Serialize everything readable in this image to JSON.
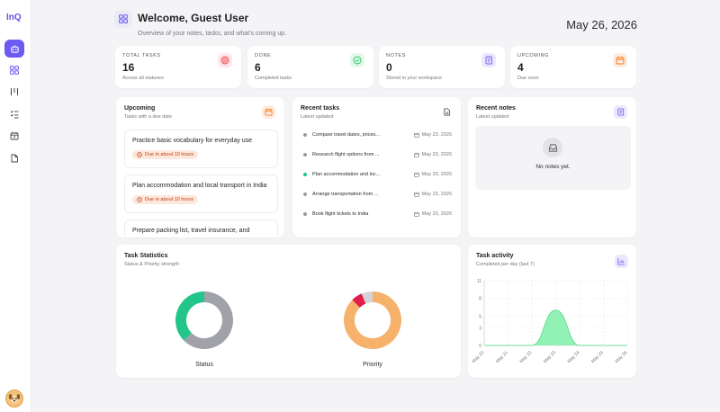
{
  "app": {
    "logo": "InQ"
  },
  "sidebar": {
    "items": [
      {
        "icon": "bot-icon",
        "active": true
      },
      {
        "icon": "grid-icon",
        "active": false
      },
      {
        "icon": "columns-icon",
        "active": false
      },
      {
        "icon": "checklist-icon",
        "active": false
      },
      {
        "icon": "calendar-icon",
        "active": false
      },
      {
        "icon": "file-icon",
        "active": false
      }
    ]
  },
  "header": {
    "title": "Welcome, Guest User",
    "subtitle": "Overview of your notes, tasks, and what's coming up.",
    "date": "May 26, 2026"
  },
  "stats": [
    {
      "label": "TOTAL TASKS",
      "value": "16",
      "sub": "Across all statuses",
      "icon": "target-icon",
      "color": "#ef4444"
    },
    {
      "label": "DONE",
      "value": "6",
      "sub": "Completed tasks",
      "icon": "check-circle-icon",
      "color": "#22c55e"
    },
    {
      "label": "NOTES",
      "value": "0",
      "sub": "Stored in your workspace",
      "icon": "notebook-icon",
      "color": "#6d5bf0"
    },
    {
      "label": "UPCOMING",
      "value": "4",
      "sub": "Due soon",
      "icon": "calendar-icon",
      "color": "#f97316"
    }
  ],
  "upcoming": {
    "title": "Upcoming",
    "subtitle": "Tasks with a due date",
    "items": [
      {
        "text": "Practice basic vocabulary for everyday use",
        "due": "Due in about 10 hours"
      },
      {
        "text": "Plan accommodation and local transport in India",
        "due": "Due in about 10 hours"
      },
      {
        "text": "Prepare packing list, travel insurance, and important documents",
        "due": ""
      }
    ]
  },
  "recent_tasks": {
    "title": "Recent tasks",
    "subtitle": "Latest updated",
    "items": [
      {
        "name": "Compare travel dates, prices...",
        "date": "May 23, 2026",
        "status_color": "#9a9aa2"
      },
      {
        "name": "Research flight options from ...",
        "date": "May 23, 2026",
        "status_color": "#9a9aa2"
      },
      {
        "name": "Plan accommodation and loc...",
        "date": "May 23, 2026",
        "status_color": "#22c58a"
      },
      {
        "name": "Arrange transportation from ...",
        "date": "May 23, 2026",
        "status_color": "#9a9aa2"
      },
      {
        "name": "Book flight tickets to India",
        "date": "May 23, 2026",
        "status_color": "#9a9aa2"
      }
    ]
  },
  "recent_notes": {
    "title": "Recent notes",
    "subtitle": "Latest updated",
    "empty_text": "No notes yet."
  },
  "task_statistics": {
    "title": "Task Statistics",
    "subtitle": "Status & Priority strength",
    "status_label": "Status",
    "priority_label": "Priority"
  },
  "task_activity": {
    "title": "Task activity",
    "subtitle": "Completed per day (last 7)"
  },
  "chart_data": [
    {
      "type": "pie",
      "title": "Status",
      "values": [
        10,
        6
      ],
      "colors": [
        "#a1a1aa",
        "#22c58a"
      ]
    },
    {
      "type": "pie",
      "title": "Priority",
      "values": [
        14,
        1,
        1
      ],
      "colors": [
        "#f6b26b",
        "#e11d48",
        "#d4d4d8"
      ]
    },
    {
      "type": "area",
      "categories": [
        "May 20",
        "May 21",
        "May 22",
        "May 23",
        "May 24",
        "May 25",
        "May 26"
      ],
      "values": [
        0,
        0,
        0,
        6,
        0,
        0,
        0
      ],
      "ylim": [
        0,
        11
      ],
      "yticks": [
        0,
        3,
        5,
        8,
        11
      ],
      "grid": true,
      "color": "#86efac"
    }
  ]
}
